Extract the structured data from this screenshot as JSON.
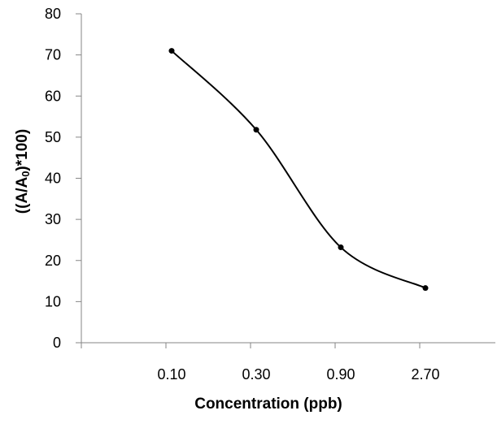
{
  "chart_data": {
    "type": "line",
    "categories": [
      "0.10",
      "0.30",
      "0.90",
      "2.70"
    ],
    "series": [
      {
        "values": [
          71,
          51.8,
          23.2,
          13.3
        ]
      }
    ],
    "yticks": [
      "0",
      "10",
      "20",
      "30",
      "40",
      "50",
      "60",
      "70",
      "80"
    ],
    "ylim": [
      0,
      80
    ],
    "xlabel": "Concentration (ppb)",
    "ylabel": {
      "prefix": "((A/A",
      "subscript": "0",
      "suffix": ")*100)"
    },
    "grid": false,
    "legend": "none",
    "line_style": "smoothed",
    "colors": {
      "line": "#000000",
      "marker": "#000000",
      "axis": "#868686"
    }
  }
}
